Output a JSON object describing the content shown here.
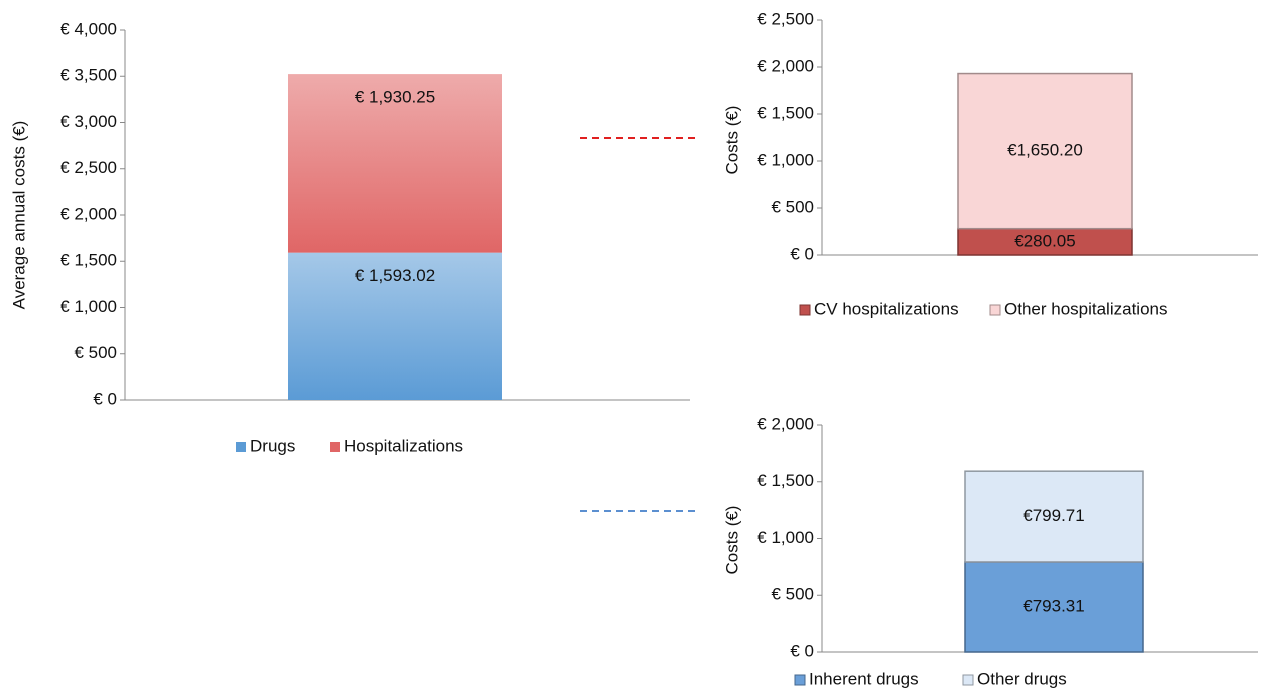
{
  "chart_data": [
    {
      "type": "stacked_bar",
      "categories": [
        null
      ],
      "y_label": "Average annual costs (€)",
      "gradient": true,
      "series": [
        {
          "name": "Drugs",
          "color": "#5b9bd5",
          "values": [
            1593.02
          ],
          "value_labels": [
            "€ 1,593.02"
          ]
        },
        {
          "name": "Hospitalizations",
          "color": "#e06666",
          "values": [
            1930.25
          ],
          "value_labels": [
            "€ 1,930.25"
          ]
        }
      ],
      "ylim": [
        0,
        4000
      ],
      "yticks": [
        {
          "value": 0,
          "label": "€ 0"
        },
        {
          "value": 500,
          "label": "€ 500"
        },
        {
          "value": 1000,
          "label": "€ 1,000"
        },
        {
          "value": 1500,
          "label": "€ 1,500"
        },
        {
          "value": 2000,
          "label": "€ 2,000"
        },
        {
          "value": 2500,
          "label": "€ 2,500"
        },
        {
          "value": 3000,
          "label": "€ 3,000"
        },
        {
          "value": 3500,
          "label": "€ 3,500"
        },
        {
          "value": 4000,
          "label": "€ 4,000"
        }
      ]
    },
    {
      "type": "stacked_bar",
      "categories": [
        null
      ],
      "y_label": "Costs (€)",
      "gradient": false,
      "series": [
        {
          "name": "CV hospitalizations",
          "color": "#c0504d",
          "values": [
            280.05
          ],
          "value_labels": [
            "€280.05"
          ]
        },
        {
          "name": "Other hospitalizations",
          "color": "#f9d6d6",
          "values": [
            1650.2
          ],
          "value_labels": [
            "€1,650.20"
          ]
        }
      ],
      "ylim": [
        0,
        2500
      ],
      "yticks": [
        {
          "value": 0,
          "label": "€ 0"
        },
        {
          "value": 500,
          "label": "€ 500"
        },
        {
          "value": 1000,
          "label": "€ 1,000"
        },
        {
          "value": 1500,
          "label": "€ 1,500"
        },
        {
          "value": 2000,
          "label": "€ 2,000"
        },
        {
          "value": 2500,
          "label": "€ 2,500"
        }
      ]
    },
    {
      "type": "stacked_bar",
      "categories": [
        null
      ],
      "y_label": "Costs (€)",
      "gradient": false,
      "series": [
        {
          "name": "Inherent drugs",
          "color": "#6a9fd8",
          "values": [
            793.31
          ],
          "value_labels": [
            "€793.31"
          ]
        },
        {
          "name": "Other drugs",
          "color": "#dce8f6",
          "values": [
            799.71
          ],
          "value_labels": [
            "€799.71"
          ]
        }
      ],
      "ylim": [
        0,
        2000
      ],
      "yticks": [
        {
          "value": 0,
          "label": "€ 0"
        },
        {
          "value": 500,
          "label": "€ 500"
        },
        {
          "value": 1000,
          "label": "€ 1,000"
        },
        {
          "value": 1500,
          "label": "€ 1,500"
        },
        {
          "value": 2000,
          "label": "€ 2,000"
        }
      ]
    }
  ]
}
